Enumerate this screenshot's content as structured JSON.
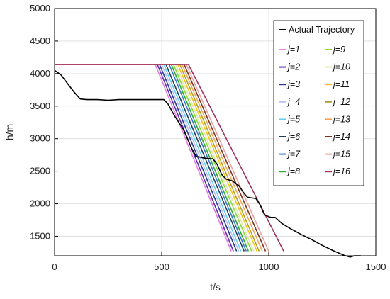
{
  "chart_data": {
    "type": "line",
    "xlabel": "t/s",
    "ylabel": "h/m",
    "xlim": [
      0,
      1500
    ],
    "ylim": [
      1200,
      5000
    ],
    "x_ticks": [
      "0",
      "500",
      "1000",
      "1500"
    ],
    "y_ticks": [
      "1500",
      "2000",
      "2500",
      "3000",
      "3500",
      "4000",
      "4500",
      "5000"
    ],
    "grid": true,
    "legend_position": "top-right",
    "legend_columns": 2,
    "actual_trajectory": {
      "name": "Actual Trajectory",
      "color": "#000000",
      "x": [
        0,
        30,
        60,
        90,
        120,
        150,
        200,
        250,
        300,
        350,
        400,
        450,
        500,
        510,
        530,
        560,
        600,
        620,
        640,
        660,
        700,
        740,
        760,
        780,
        800,
        830,
        860,
        880,
        900,
        920,
        940,
        960,
        980,
        1000,
        1010,
        1030,
        1060,
        1100,
        1150,
        1200,
        1250,
        1300,
        1350,
        1380,
        1400,
        1430
      ],
      "y": [
        4050,
        3980,
        3850,
        3720,
        3610,
        3600,
        3600,
        3590,
        3600,
        3600,
        3600,
        3600,
        3600,
        3600,
        3530,
        3350,
        3150,
        3000,
        2850,
        2730,
        2700,
        2690,
        2600,
        2450,
        2380,
        2350,
        2280,
        2180,
        2100,
        2090,
        2080,
        1980,
        1830,
        1800,
        1790,
        1790,
        1700,
        1620,
        1530,
        1450,
        1360,
        1280,
        1210,
        1180,
        1200,
        1200
      ]
    },
    "series": [
      {
        "name": "j=1",
        "color": "#e87fe0",
        "x": [
          0,
          470,
          825
        ],
        "y": [
          4140,
          4140,
          1270
        ]
      },
      {
        "name": "j=2",
        "color": "#5a2fb0",
        "x": [
          0,
          480,
          835
        ],
        "y": [
          4140,
          4140,
          1270
        ]
      },
      {
        "name": "j=3",
        "color": "#283a8f",
        "x": [
          0,
          490,
          850
        ],
        "y": [
          4140,
          4140,
          1270
        ]
      },
      {
        "name": "j=4",
        "color": "#b8c4ef",
        "x": [
          0,
          500,
          860
        ],
        "y": [
          4140,
          4140,
          1270
        ]
      },
      {
        "name": "j=5",
        "color": "#66d2f0",
        "x": [
          0,
          510,
          870
        ],
        "y": [
          4140,
          4140,
          1270
        ]
      },
      {
        "name": "j=6",
        "color": "#1f3d5c",
        "x": [
          0,
          520,
          885
        ],
        "y": [
          4140,
          4140,
          1270
        ]
      },
      {
        "name": "j=7",
        "color": "#3a78c7",
        "x": [
          0,
          535,
          895
        ],
        "y": [
          4140,
          4140,
          1270
        ]
      },
      {
        "name": "j=8",
        "color": "#2fa82e",
        "x": [
          0,
          545,
          905
        ],
        "y": [
          4140,
          4140,
          1270
        ]
      },
      {
        "name": "j=9",
        "color": "#8bd83a",
        "x": [
          0,
          555,
          920
        ],
        "y": [
          4140,
          4140,
          1270
        ]
      },
      {
        "name": "j=10",
        "color": "#e4e4b0",
        "x": [
          0,
          565,
          930
        ],
        "y": [
          4140,
          4140,
          1270
        ]
      },
      {
        "name": "j=11",
        "color": "#f5c21b",
        "x": [
          0,
          575,
          945
        ],
        "y": [
          4140,
          4140,
          1270
        ]
      },
      {
        "name": "j=12",
        "color": "#b0a030",
        "x": [
          0,
          585,
          955
        ],
        "y": [
          4140,
          4140,
          1270
        ]
      },
      {
        "name": "j=13",
        "color": "#f4a45a",
        "x": [
          0,
          595,
          970
        ],
        "y": [
          4140,
          4140,
          1270
        ]
      },
      {
        "name": "j=14",
        "color": "#7a3520",
        "x": [
          0,
          605,
          985
        ],
        "y": [
          4140,
          4140,
          1270
        ]
      },
      {
        "name": "j=15",
        "color": "#e8a2a2",
        "x": [
          0,
          615,
          1000
        ],
        "y": [
          4140,
          4140,
          1270
        ]
      },
      {
        "name": "j=16",
        "color": "#a03060",
        "x": [
          0,
          625,
          1070
        ],
        "y": [
          4140,
          4140,
          1270
        ]
      }
    ]
  }
}
